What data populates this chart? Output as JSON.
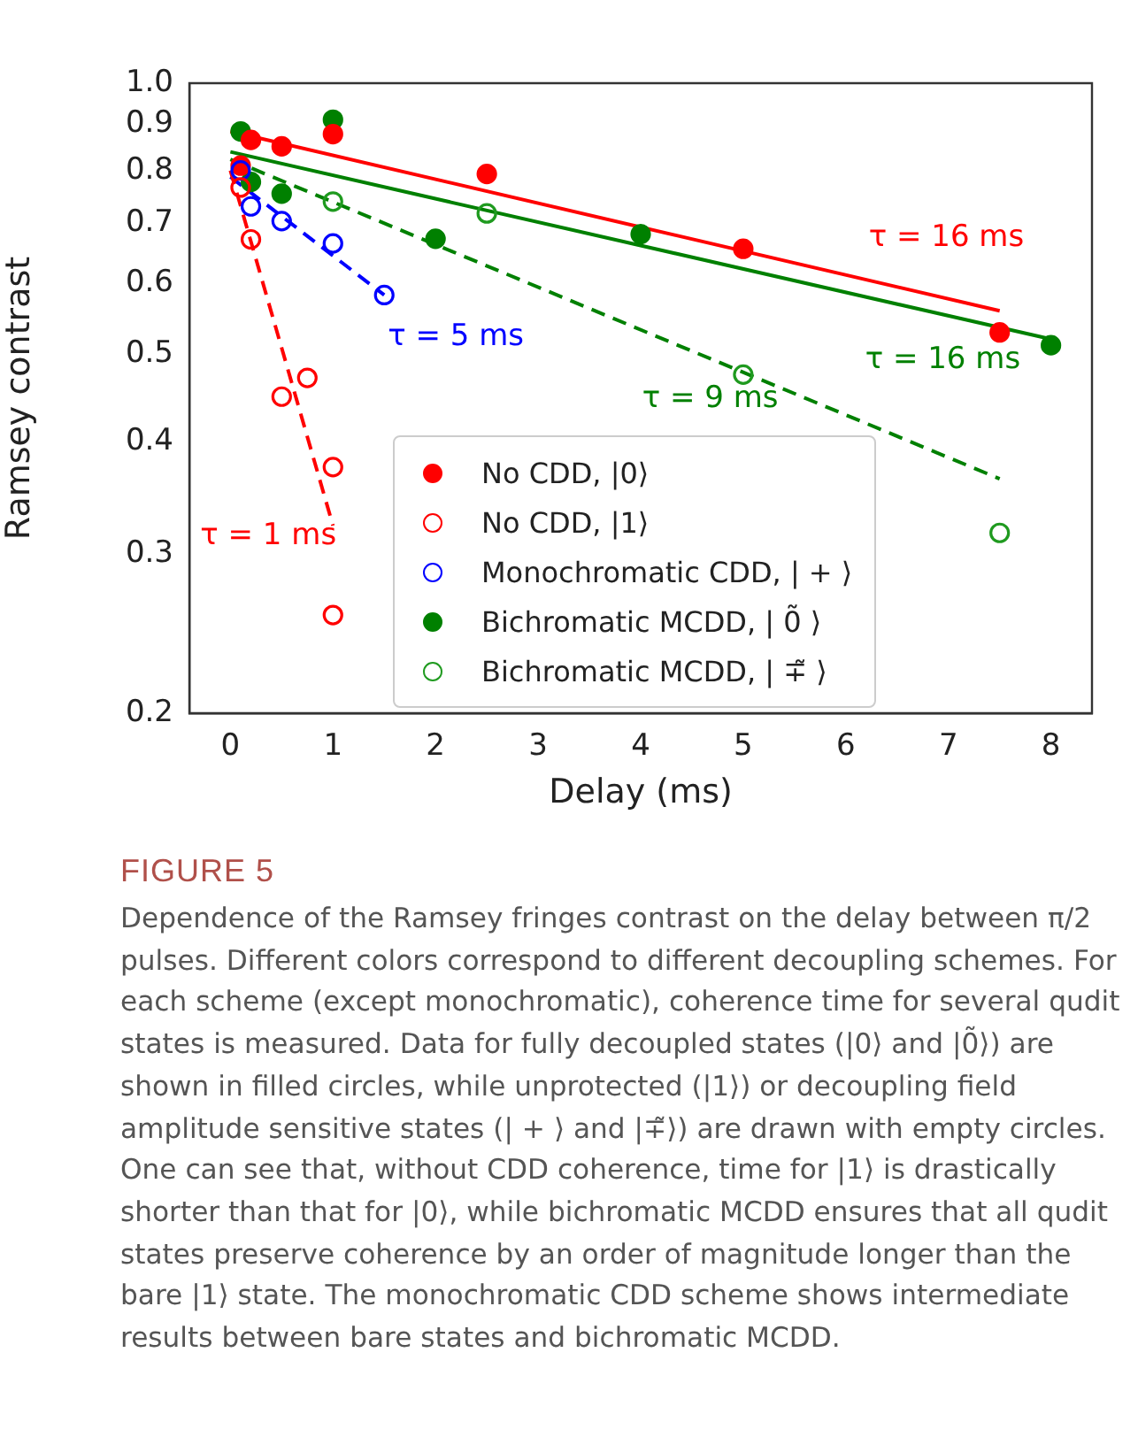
{
  "chart_data": {
    "type": "scatter",
    "title": "FIGURE 5",
    "xlabel": "Delay (ms)",
    "ylabel": "Ramsey contrast",
    "log": "y",
    "grid": false,
    "legend": "bottom",
    "xlim": [
      -0.4,
      8.4
    ],
    "xticks": [
      0,
      1,
      2,
      3,
      4,
      5,
      6,
      7,
      8
    ],
    "ylim": [
      0.2,
      1.0
    ],
    "yticks": [
      0.2,
      0.3,
      0.4,
      0.5,
      0.6,
      0.7,
      0.8,
      0.9,
      {
        "value": 1.0,
        "label": "1.0"
      }
    ],
    "series": [
      {
        "name": "No CDD, |0⟩",
        "marker": "circle",
        "color": "#ff0000",
        "x": [
          0.1,
          0.2,
          0.5,
          1,
          2.5,
          5,
          7.5
        ],
        "values": [
          0.81,
          0.865,
          0.851,
          0.878,
          0.793,
          0.655,
          0.529
        ]
      },
      {
        "name": "No CDD, |1⟩",
        "marker": "circle",
        "color": "#ff0000",
        "x": [
          0.1,
          0.2,
          0.5,
          0.75,
          1,
          1
        ],
        "values": [
          0.766,
          0.671,
          0.449,
          0.471,
          0.375,
          0.257
        ]
      },
      {
        "name": "Monochromatic CDD, | + ⟩",
        "marker": "circle",
        "color": "#0000ff",
        "x": [
          0.1,
          0.2,
          0.5,
          1,
          1.5
        ],
        "values": [
          0.8,
          0.73,
          0.703,
          0.664,
          0.582
        ]
      },
      {
        "name": "Bichromatic MCDD, | 0̃ ⟩",
        "marker": "circle",
        "color": "#008000",
        "x": [
          0.1,
          0.2,
          0.5,
          1,
          2,
          4,
          8
        ],
        "values": [
          0.884,
          0.777,
          0.754,
          0.911,
          0.672,
          0.68,
          0.512
        ]
      },
      {
        "name": "Bichromatic MCDD, | ∓̃ ⟩",
        "marker": "circle",
        "color": "#1f9a1f",
        "x": [
          1,
          2.5,
          5,
          7.5
        ],
        "values": [
          0.739,
          0.717,
          0.475,
          0.317
        ]
      },
      {
        "name": "τ = 16 ms",
        "type": "line",
        "marker": "none",
        "line_style": "solid",
        "color": "#ff0000",
        "x": [
          0,
          7.5
        ],
        "values": [
          0.884,
          0.559
        ]
      },
      {
        "name": "τ = 1 ms",
        "type": "line",
        "marker": "none",
        "line_style": "dashed",
        "color": "#ff0000",
        "x": [
          0,
          1
        ],
        "values": [
          0.8,
          0.323
        ]
      },
      {
        "name": "τ = 5 ms",
        "type": "line",
        "marker": "none",
        "line_style": "dashed",
        "color": "#0000ff",
        "x": [
          0,
          1.5
        ],
        "values": [
          0.787,
          0.582
        ]
      },
      {
        "name": "τ = 16 ms",
        "type": "line",
        "marker": "none",
        "line_style": "solid",
        "color": "#008000",
        "x": [
          0,
          8
        ],
        "values": [
          0.839,
          0.52
        ]
      },
      {
        "name": "τ = 9 ms",
        "type": "line",
        "marker": "none",
        "line_style": "dashed",
        "color": "#008000",
        "x": [
          0,
          7.5
        ],
        "values": [
          0.823,
          0.364
        ]
      }
    ],
    "annotations": [
      "Dependence of the Ramsey fringes contrast on the delay between π/2 pulses. Different colors correspond to different decoupling schemes. For each scheme (except monochromatic), coherence time for several qudit states is measured. Data for fully decoupled states (|0⟩ and |0̃⟩) are shown in filled circles, while unprotected (|1⟩) or decoupling field amplitude sensitive states (| + ⟩ and |∓̃⟩) are drawn with empty circles. One can see that, without CDD coherence, time for |1⟩ is drastically shorter than that for |0⟩, while bichromatic MCDD ensures that all qudit states preserve coherence by an order of magnitude longer than the bare |1⟩ state. The monochromatic CDD scheme shows intermediate results between bare states and bichromatic MCDD."
    ]
  }
}
